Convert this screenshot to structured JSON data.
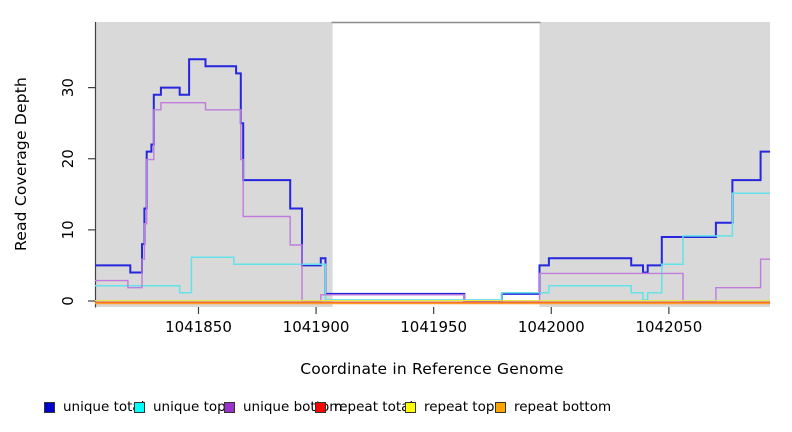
{
  "figure": {
    "x_axis_title": "Coordinate in Reference Genome",
    "y_axis_title": "Read Coverage Depth"
  },
  "legend": {
    "items": [
      {
        "label": "unique total",
        "color": "#0000CC"
      },
      {
        "label": "unique top",
        "color": "#00FFFF"
      },
      {
        "label": "unique bottom",
        "color": "#9932CC"
      },
      {
        "label": "repeat total",
        "color": "#FF0000"
      },
      {
        "label": "repeat top",
        "color": "#FFFF00"
      },
      {
        "label": "repeat bottom",
        "color": "#FFA500"
      }
    ]
  },
  "chart_data": {
    "type": "line",
    "step": "after",
    "title": "",
    "xlabel": "Coordinate in Reference Genome",
    "ylabel": "Read Coverage Depth",
    "xlim": [
      1041806,
      1042093
    ],
    "ylim": [
      0,
      39
    ],
    "x_ticks": [
      1041850,
      1041900,
      1041950,
      1042000,
      1042050
    ],
    "y_ticks": [
      0,
      10,
      20,
      30
    ],
    "grid": false,
    "legend_position": "bottom",
    "shaded_regions": [
      {
        "x0": 1041806,
        "x1": 1041907,
        "color": "#D9D9D9",
        "meaning": "unique region"
      },
      {
        "x0": 1041995,
        "x1": 1042093,
        "color": "#D9D9D9",
        "meaning": "unique region"
      }
    ],
    "series": [
      {
        "name": "unique total",
        "line_color": "#2626DF",
        "width": 2.0,
        "dy": 0,
        "points": [
          [
            1041806,
            5
          ],
          [
            1041821,
            4
          ],
          [
            1041826,
            8
          ],
          [
            1041827,
            13
          ],
          [
            1041828,
            21
          ],
          [
            1041830,
            22
          ],
          [
            1041831,
            29
          ],
          [
            1041834,
            30
          ],
          [
            1041842,
            29
          ],
          [
            1041846,
            34
          ],
          [
            1041853,
            33
          ],
          [
            1041866,
            32
          ],
          [
            1041868,
            25
          ],
          [
            1041869,
            17
          ],
          [
            1041889,
            13
          ],
          [
            1041894,
            5
          ],
          [
            1041902,
            6
          ],
          [
            1041904,
            1
          ],
          [
            1041963,
            0
          ],
          [
            1041979,
            1
          ],
          [
            1041995,
            5
          ],
          [
            1041999,
            6
          ],
          [
            1042034,
            5
          ],
          [
            1042039,
            4
          ],
          [
            1042041,
            5
          ],
          [
            1042047,
            9
          ],
          [
            1042070,
            11
          ],
          [
            1042077,
            17
          ],
          [
            1042089,
            21
          ]
        ]
      },
      {
        "name": "unique top",
        "line_color": "#63E3E7",
        "width": 1.5,
        "dy": -1.1,
        "points": [
          [
            1041806,
            2
          ],
          [
            1041842,
            1
          ],
          [
            1041847,
            6
          ],
          [
            1041865,
            5
          ],
          [
            1041904,
            0
          ],
          [
            1041979,
            1
          ],
          [
            1041999,
            2
          ],
          [
            1042034,
            1
          ],
          [
            1042039,
            0
          ],
          [
            1042041,
            1
          ],
          [
            1042047,
            5
          ],
          [
            1042056,
            9
          ],
          [
            1042077,
            15
          ]
        ]
      },
      {
        "name": "unique bottom",
        "line_color": "#BF7CDC",
        "width": 1.4,
        "dy": 0.9,
        "points": [
          [
            1041806,
            3
          ],
          [
            1041820,
            2
          ],
          [
            1041826,
            6
          ],
          [
            1041827,
            11
          ],
          [
            1041828,
            20
          ],
          [
            1041831,
            27
          ],
          [
            1041834,
            28
          ],
          [
            1041853,
            27
          ],
          [
            1041868,
            20
          ],
          [
            1041869,
            12
          ],
          [
            1041889,
            8
          ],
          [
            1041894,
            0
          ],
          [
            1041902,
            1
          ],
          [
            1041963,
            0
          ],
          [
            1041995,
            4
          ],
          [
            1042056,
            0
          ],
          [
            1042070,
            2
          ],
          [
            1042089,
            6
          ]
        ]
      },
      {
        "name": "repeat total",
        "line_color": "#E23D5C",
        "width": 1.3,
        "dy": 1.3,
        "points": [
          [
            1041806,
            0
          ]
        ]
      },
      {
        "name": "repeat top",
        "line_color": "#E9E93E",
        "width": 1.3,
        "dy": -0.4,
        "points": [
          [
            1041806,
            0
          ]
        ]
      },
      {
        "name": "repeat bottom",
        "line_color": "#FF9E1B",
        "width": 1.8,
        "dy": 2.4,
        "points": [
          [
            1041806,
            0
          ]
        ]
      }
    ]
  }
}
